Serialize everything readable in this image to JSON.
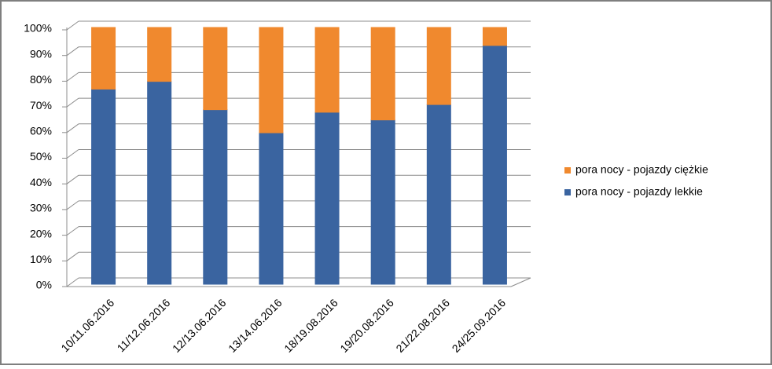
{
  "chart_data": {
    "type": "stacked_bar",
    "categories": [
      "10/11.06.2016",
      "11/12.06.2016",
      "12/13.06.2016",
      "13/14.06.2016",
      "18/19.08.2016",
      "19/20.08.2016",
      "21/22.08.2016",
      "24/25.09.2016"
    ],
    "series": [
      {
        "name": "pora nocy - pojazdy lekkie",
        "color": "#3a64a0",
        "values": [
          76,
          79,
          68,
          59,
          67,
          64,
          70,
          93
        ]
      },
      {
        "name": "pora nocy - pojazdy ciężkie",
        "color": "#f0892e",
        "values": [
          24,
          21,
          32,
          41,
          33,
          36,
          30,
          7
        ]
      }
    ],
    "ylim": [
      0,
      100
    ],
    "yticks": [
      {
        "value": 0,
        "label": "0%"
      },
      {
        "value": 10,
        "label": "10%"
      },
      {
        "value": 20,
        "label": "20%"
      },
      {
        "value": 30,
        "label": "30%"
      },
      {
        "value": 40,
        "label": "40%"
      },
      {
        "value": 50,
        "label": "50%"
      },
      {
        "value": 60,
        "label": "60%"
      },
      {
        "value": 70,
        "label": "70%"
      },
      {
        "value": 80,
        "label": "80%"
      },
      {
        "value": 90,
        "label": "90%"
      },
      {
        "value": 100,
        "label": "100%"
      }
    ],
    "grid": true,
    "legend": "right"
  }
}
